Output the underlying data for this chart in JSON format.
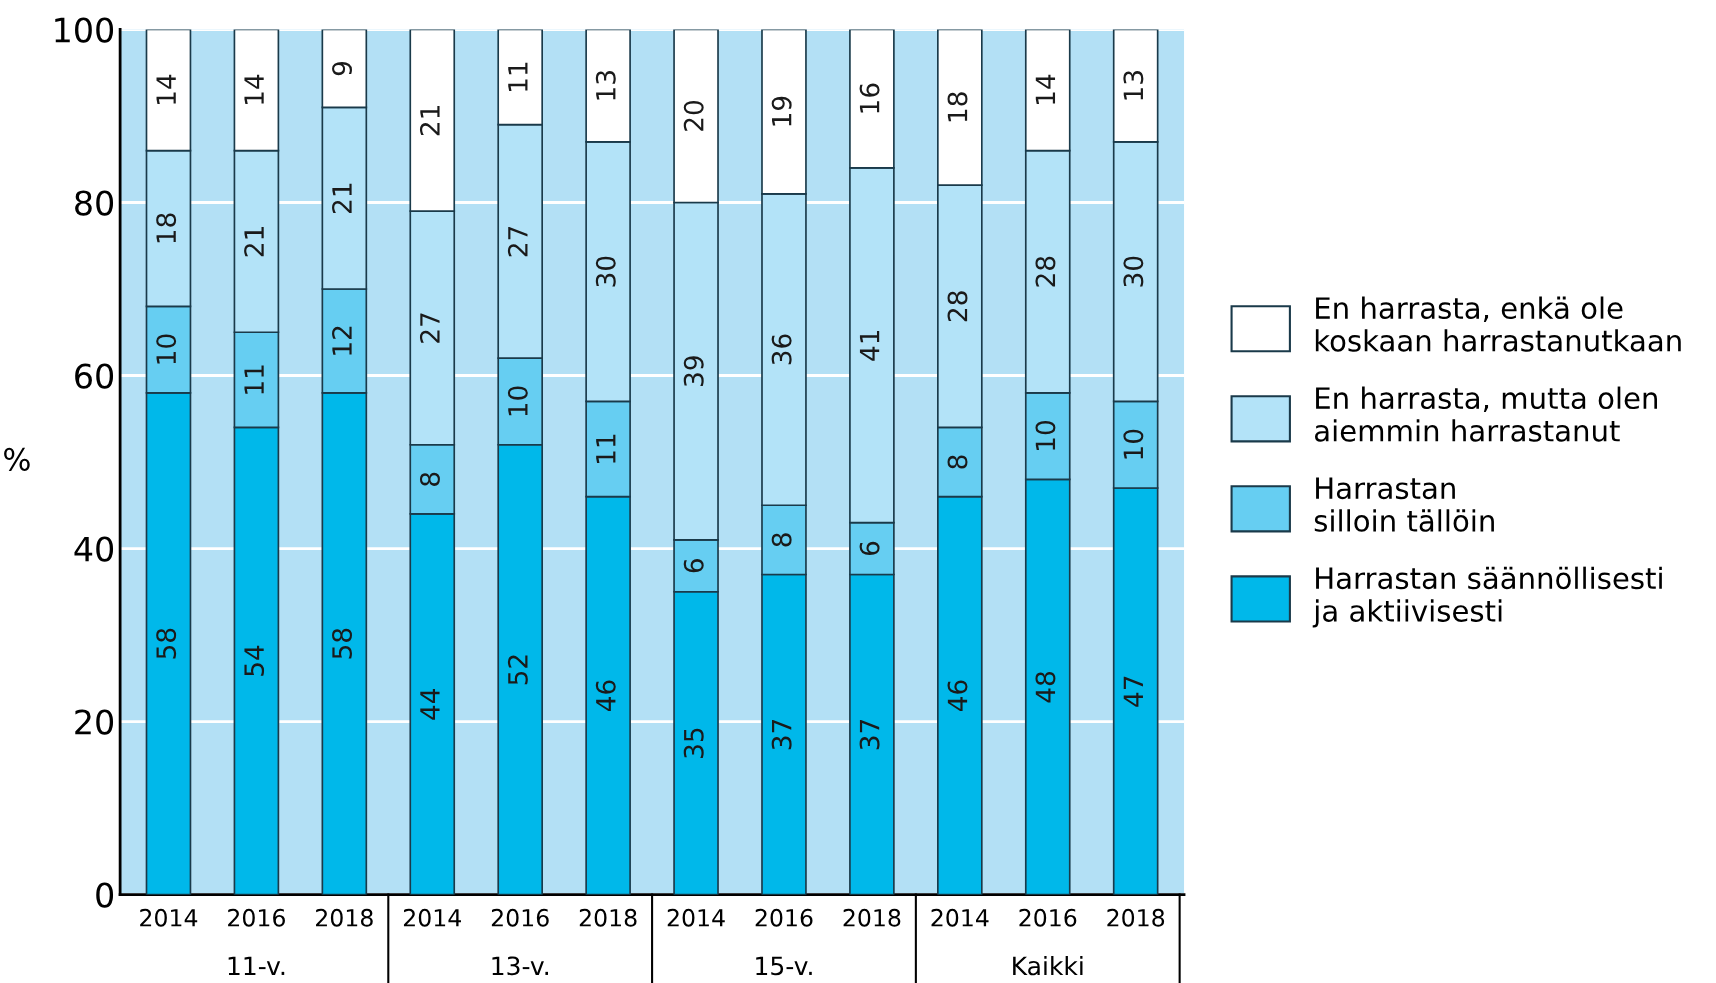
{
  "chart_data": {
    "type": "bar",
    "stacked": true,
    "ylabel": "%",
    "categories": [
      "2014",
      "2016",
      "2018",
      "2014",
      "2016",
      "2018",
      "2014",
      "2016",
      "2018",
      "2014",
      "2016",
      "2018"
    ],
    "series": [
      {
        "name": "Harrastan säännöllisesti ja aktiivisesti",
        "color": "#00b8ea",
        "values": [
          58,
          54,
          58,
          44,
          52,
          46,
          35,
          37,
          37,
          46,
          48,
          47
        ]
      },
      {
        "name": "Harrastan silloin tällöin",
        "color": "#66cef2",
        "values": [
          10,
          11,
          12,
          8,
          10,
          11,
          6,
          8,
          6,
          8,
          10,
          10
        ]
      },
      {
        "name": "En harrasta, mutta olen aiemmin harrastanut",
        "color": "#b3e3f8",
        "values": [
          18,
          21,
          21,
          27,
          27,
          30,
          39,
          36,
          41,
          28,
          28,
          30
        ]
      },
      {
        "name": "En harrasta, enkä ole koskaan harrastanutkaan",
        "color": "#ffffff",
        "values": [
          14,
          14,
          9,
          21,
          11,
          13,
          20,
          19,
          16,
          18,
          14,
          13
        ]
      }
    ],
    "annotations": [
      "11-v.",
      "13-v.",
      "15-v.",
      "Kaikki"
    ],
    "ylim": [
      0,
      100
    ],
    "yticks": [
      0,
      20,
      40,
      60,
      80,
      100
    ],
    "grid": "y",
    "legend": "right",
    "data_labels": true
  }
}
